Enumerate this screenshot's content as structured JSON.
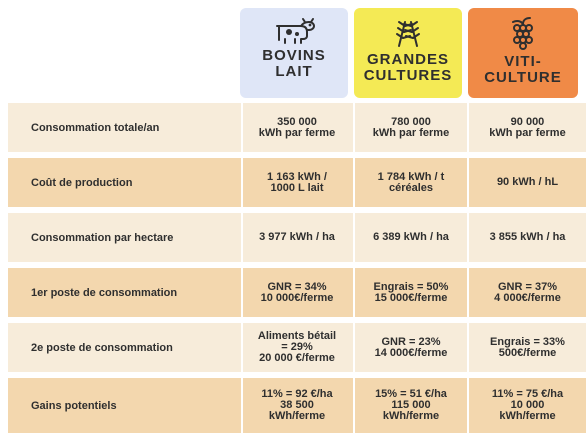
{
  "header": {
    "col1": {
      "title_line1": "BOVINS",
      "title_line2": "LAIT",
      "icon": "cow-icon",
      "bg": "#dfe6f7"
    },
    "col2": {
      "title_line1": "GRANDES",
      "title_line2": "CULTURES",
      "icon": "wheat-icon",
      "bg": "#f4ea55"
    },
    "col3": {
      "title_line1": "VITI-",
      "title_line2": "CULTURE",
      "icon": "grapes-icon",
      "bg": "#f08a47"
    }
  },
  "rows": [
    {
      "label": "Consommation totale/an",
      "values": [
        "350 000\nkWh par ferme",
        "780 000\nkWh par ferme",
        "90 000\nkWh par ferme"
      ]
    },
    {
      "label": "Coût de production",
      "values": [
        "1 163 kWh /\n1000 L lait",
        "1 784 kWh / t\ncéréales",
        "90 kWh / hL"
      ]
    },
    {
      "label": "Consommation par hectare",
      "values": [
        "3 977 kWh / ha",
        "6 389 kWh / ha",
        "3 855 kWh / ha"
      ]
    },
    {
      "label": "1er poste de consommation",
      "values": [
        "GNR = 34%\n10 000€/ferme",
        "Engrais = 50%\n15 000€/ferme",
        "GNR = 37%\n4 000€/ferme"
      ]
    },
    {
      "label": "2e poste de consommation",
      "values": [
        "Aliments bétail\n= 29%\n20 000 €/ferme",
        "GNR = 23%\n14 000€/ferme",
        "Engrais = 33%\n500€/ferme"
      ]
    },
    {
      "label": "Gains potentiels",
      "values": [
        "11% = 92 €/ha\n38 500\nkWh/ferme",
        "15% = 51 €/ha\n115 000\nkWh/ferme",
        "11% = 75 €/ha\n10 000\nkWh/ferme"
      ]
    }
  ],
  "colors": {
    "row_light": "#f7ecda",
    "row_dark": "#f3d7ae",
    "text": "#2f2f2f"
  }
}
